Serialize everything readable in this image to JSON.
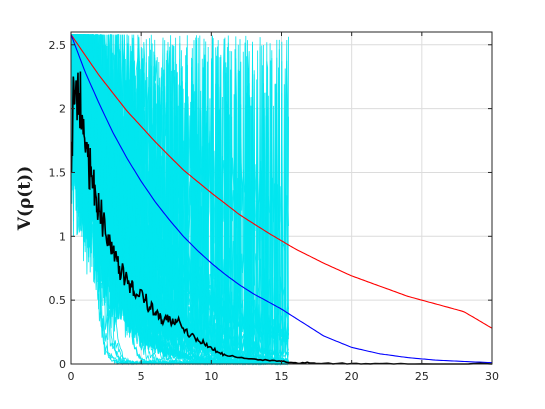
{
  "chart_data": {
    "type": "line",
    "title": "",
    "xlabel": "",
    "ylabel": "V(ρ(t))",
    "xlim": [
      0,
      30
    ],
    "ylim": [
      0,
      2.6
    ],
    "xticks": [
      0,
      5,
      10,
      15,
      20,
      25,
      30
    ],
    "yticks": [
      0,
      0.5,
      1,
      1.5,
      2,
      2.5
    ],
    "xtick_labels": [
      "0",
      "5",
      "10",
      "15",
      "20",
      "25",
      "30"
    ],
    "ytick_labels": [
      "0",
      "0.5",
      "1",
      "1.5",
      "2",
      "2.5"
    ],
    "grid": true,
    "box": true,
    "series": [
      {
        "color": "#ff0000",
        "style": "smooth",
        "x": [
          0,
          2,
          4,
          6,
          8,
          10,
          12,
          14,
          16,
          18,
          20,
          22,
          24,
          26,
          28,
          30
        ],
        "y": [
          2.58,
          2.26,
          1.98,
          1.74,
          1.52,
          1.34,
          1.17,
          1.03,
          0.9,
          0.79,
          0.69,
          0.61,
          0.53,
          0.47,
          0.41,
          0.28
        ]
      },
      {
        "color": "#0000ff",
        "style": "smooth",
        "x": [
          0,
          1,
          2,
          3,
          4,
          5,
          6,
          7,
          8,
          9,
          10,
          11,
          12,
          13,
          14,
          15,
          16,
          18,
          20,
          22,
          24,
          26,
          28,
          30
        ],
        "y": [
          2.58,
          2.29,
          2.04,
          1.81,
          1.61,
          1.43,
          1.27,
          1.13,
          1.0,
          0.89,
          0.79,
          0.7,
          0.62,
          0.55,
          0.49,
          0.43,
          0.36,
          0.22,
          0.13,
          0.08,
          0.05,
          0.03,
          0.02,
          0.01
        ]
      },
      {
        "color": "#000000",
        "style": "jagged",
        "x": [
          0,
          0.2,
          0.4,
          0.6,
          0.8,
          1.0,
          1.2,
          1.4,
          1.6,
          1.8,
          2.0,
          2.2,
          2.5,
          2.8,
          3.0,
          3.3,
          3.6,
          4.0,
          4.3,
          4.6,
          5.0,
          5.3,
          5.6,
          6.0,
          6.3,
          6.6,
          7.0,
          7.3,
          7.6,
          8.0,
          8.5,
          9.0,
          9.5,
          10.0,
          10.5,
          11.0,
          12.0,
          13.0,
          14.0,
          15.0,
          16.0,
          17.0,
          18.0,
          20.0,
          22.0,
          25.0,
          30.0
        ],
        "y": [
          1.5,
          2.2,
          2.18,
          2.1,
          1.95,
          1.7,
          1.62,
          1.5,
          1.38,
          1.3,
          1.2,
          1.15,
          1.0,
          0.95,
          0.88,
          0.8,
          0.72,
          0.68,
          0.6,
          0.52,
          0.58,
          0.5,
          0.45,
          0.4,
          0.36,
          0.33,
          0.37,
          0.32,
          0.34,
          0.28,
          0.22,
          0.2,
          0.16,
          0.13,
          0.09,
          0.07,
          0.05,
          0.04,
          0.03,
          0.02,
          0.01,
          0.008,
          0.005,
          0.003,
          0.002,
          0.001,
          0.0
        ]
      }
    ],
    "cyan_band": {
      "color": "#00e5ee",
      "trajectory_count": 60,
      "start_value": 2.58,
      "max_time": 15.5,
      "description_of_extent": "many noisy trajectories occupying roughly 0 to 15 on x"
    }
  }
}
